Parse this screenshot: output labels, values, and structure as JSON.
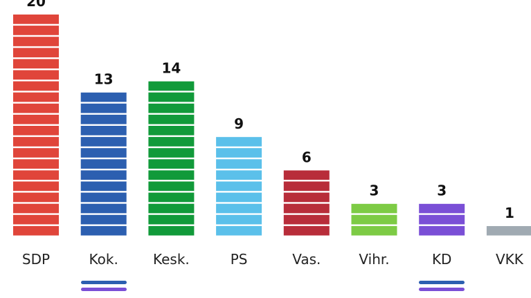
{
  "chart_data": {
    "type": "bar",
    "categories": [
      "SDP",
      "Kok.",
      "Kesk.",
      "PS",
      "Vas.",
      "Vihr.",
      "KD",
      "VKK"
    ],
    "values": [
      20,
      13,
      14,
      9,
      6,
      3,
      3,
      1
    ],
    "colors": [
      "#e0453a",
      "#2c5fb0",
      "#119a3a",
      "#5bc0ea",
      "#b82d3a",
      "#7dcb45",
      "#7a4fd6",
      "#a0aab2"
    ]
  }
}
